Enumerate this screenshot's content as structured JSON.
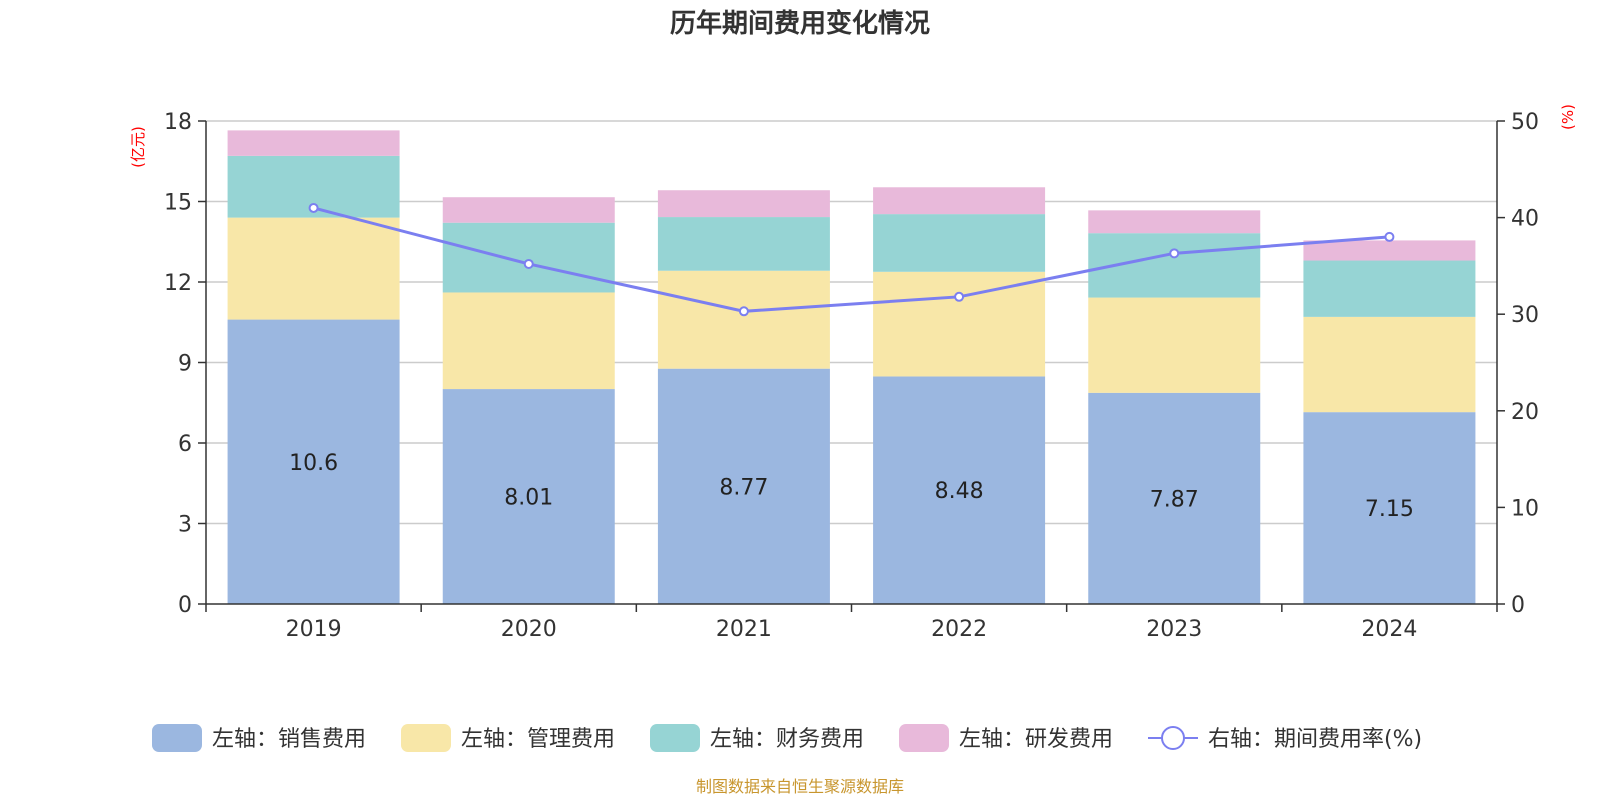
{
  "chart_data": {
    "type": "bar",
    "title": "历年期间费用变化情况",
    "categories": [
      "2019",
      "2020",
      "2021",
      "2022",
      "2023",
      "2024"
    ],
    "left_axis": {
      "unit_label": "(亿元)",
      "min": 0,
      "max": 18,
      "ticks": [
        0,
        3,
        6,
        9,
        12,
        15,
        18
      ]
    },
    "right_axis": {
      "unit_label": "(%)",
      "min": 0,
      "max": 50,
      "ticks": [
        0,
        10,
        20,
        30,
        40,
        50
      ]
    },
    "grid": true,
    "legend_position": "bottom",
    "series": [
      {
        "name": "左轴：销售费用",
        "type": "bar",
        "axis": "left",
        "color": "#9bb7e0",
        "values": [
          10.6,
          8.01,
          8.77,
          8.48,
          7.87,
          7.15
        ],
        "show_labels": true
      },
      {
        "name": "左轴：管理费用",
        "type": "bar",
        "axis": "left",
        "color": "#f8e7a8",
        "values": [
          3.8,
          3.6,
          3.65,
          3.9,
          3.55,
          3.55
        ]
      },
      {
        "name": "左轴：财务费用",
        "type": "bar",
        "axis": "left",
        "color": "#96d4d4",
        "values": [
          2.3,
          2.6,
          2.0,
          2.15,
          2.4,
          2.1
        ]
      },
      {
        "name": "左轴：研发费用",
        "type": "bar",
        "axis": "left",
        "color": "#e8b9da",
        "values": [
          0.95,
          0.95,
          1.0,
          1.0,
          0.85,
          0.75
        ]
      },
      {
        "name": "右轴：期间费用率(%)",
        "type": "line",
        "axis": "right",
        "color": "#7b7ff0",
        "values": [
          41.0,
          35.2,
          30.3,
          31.8,
          36.3,
          38.0
        ]
      }
    ],
    "source_note": "制图数据来自恒生聚源数据库"
  }
}
